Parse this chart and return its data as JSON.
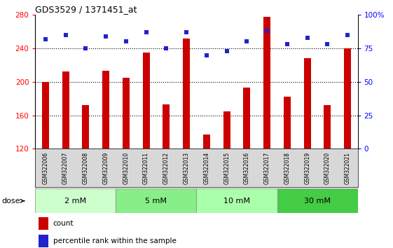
{
  "title": "GDS3529 / 1371451_at",
  "samples": [
    "GSM322006",
    "GSM322007",
    "GSM322008",
    "GSM322009",
    "GSM322010",
    "GSM322011",
    "GSM322012",
    "GSM322013",
    "GSM322014",
    "GSM322015",
    "GSM322016",
    "GSM322017",
    "GSM322018",
    "GSM322019",
    "GSM322020",
    "GSM322021"
  ],
  "counts": [
    200,
    212,
    172,
    213,
    205,
    235,
    173,
    252,
    137,
    165,
    193,
    278,
    182,
    228,
    172,
    240
  ],
  "percentiles": [
    82,
    85,
    75,
    84,
    80,
    87,
    75,
    87,
    70,
    73,
    80,
    88,
    78,
    83,
    78,
    85
  ],
  "bar_color": "#cc0000",
  "dot_color": "#2222cc",
  "ylim_left": [
    120,
    280
  ],
  "ylim_right": [
    0,
    100
  ],
  "yticks_left": [
    120,
    160,
    200,
    240,
    280
  ],
  "yticks_right": [
    0,
    25,
    50,
    75,
    100
  ],
  "yticklabels_right": [
    "0",
    "25",
    "50",
    "75",
    "100%"
  ],
  "hlines": [
    160,
    200,
    240
  ],
  "doses": [
    {
      "label": "2 mM",
      "start": 0,
      "end": 4,
      "color": "#ccffcc"
    },
    {
      "label": "5 mM",
      "start": 4,
      "end": 8,
      "color": "#88ee88"
    },
    {
      "label": "10 mM",
      "start": 8,
      "end": 12,
      "color": "#aaffaa"
    },
    {
      "label": "30 mM",
      "start": 12,
      "end": 16,
      "color": "#44cc44"
    }
  ],
  "dose_label": "dose",
  "legend_items": [
    {
      "label": "count",
      "color": "#cc0000"
    },
    {
      "label": "percentile rank within the sample",
      "color": "#2222cc"
    }
  ],
  "bg_color": "#ffffff",
  "bar_bottom": 120,
  "bar_width": 0.35
}
